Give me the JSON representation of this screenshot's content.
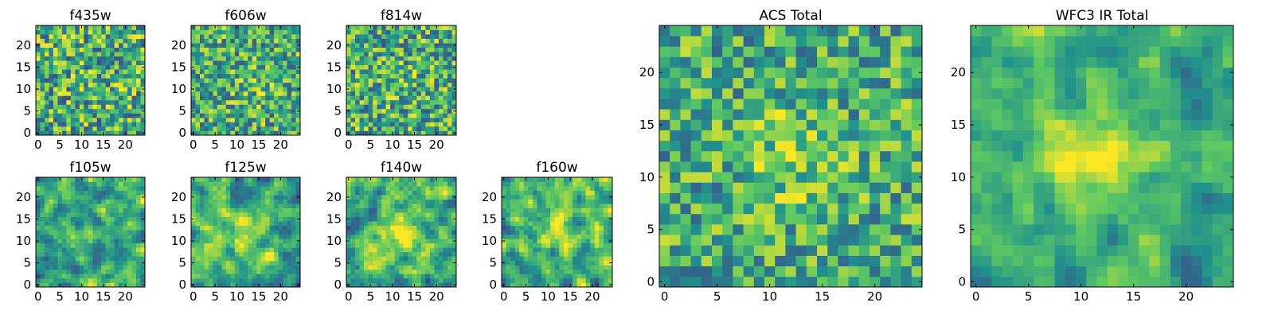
{
  "figure": {
    "description_panels": 9
  },
  "colormap": {
    "name": "viridis",
    "stops": [
      "#440154",
      "#3b528b",
      "#21918c",
      "#5ec962",
      "#fde725"
    ]
  },
  "chart_data": [
    {
      "id": "f435w",
      "type": "heatmap",
      "title": "f435w",
      "size": 25,
      "xlim": [
        0,
        24
      ],
      "ylim": [
        0,
        24
      ],
      "xticks": [
        0,
        5,
        10,
        15,
        20
      ],
      "yticks": [
        0,
        5,
        10,
        15,
        20
      ],
      "peak": [
        12,
        12
      ],
      "peak_strength": 0.02,
      "noise": 0.38,
      "seed": 11,
      "smooth": 0
    },
    {
      "id": "f606w",
      "type": "heatmap",
      "title": "f606w",
      "size": 25,
      "xlim": [
        0,
        24
      ],
      "ylim": [
        0,
        24
      ],
      "xticks": [
        0,
        5,
        10,
        15,
        20
      ],
      "yticks": [
        0,
        5,
        10,
        15,
        20
      ],
      "peak": [
        14,
        11
      ],
      "peak_strength": 0.12,
      "noise": 0.34,
      "seed": 23,
      "smooth": 0
    },
    {
      "id": "f814w",
      "type": "heatmap",
      "title": "f814w",
      "size": 25,
      "xlim": [
        0,
        24
      ],
      "ylim": [
        0,
        24
      ],
      "xticks": [
        0,
        5,
        10,
        15,
        20
      ],
      "yticks": [
        0,
        5,
        10,
        15,
        20
      ],
      "peak": [
        12,
        12
      ],
      "peak_strength": 0.05,
      "noise": 0.36,
      "seed": 37,
      "smooth": 0
    },
    {
      "id": "f105w",
      "type": "heatmap",
      "title": "f105w",
      "size": 25,
      "xlim": [
        0,
        24
      ],
      "ylim": [
        0,
        24
      ],
      "xticks": [
        0,
        5,
        10,
        15,
        20
      ],
      "yticks": [
        0,
        5,
        10,
        15,
        20
      ],
      "peak": [
        12,
        12
      ],
      "peak_strength": 0.1,
      "noise": 0.42,
      "seed": 41,
      "smooth": 1
    },
    {
      "id": "f125w",
      "type": "heatmap",
      "title": "f125w",
      "size": 25,
      "xlim": [
        0,
        24
      ],
      "ylim": [
        0,
        24
      ],
      "xticks": [
        0,
        5,
        10,
        15,
        20
      ],
      "yticks": [
        0,
        5,
        10,
        15,
        20
      ],
      "peak": [
        12,
        11
      ],
      "peak_strength": 0.22,
      "noise": 0.4,
      "seed": 53,
      "smooth": 1
    },
    {
      "id": "f140w",
      "type": "heatmap",
      "title": "f140w",
      "size": 25,
      "xlim": [
        0,
        24
      ],
      "ylim": [
        0,
        24
      ],
      "xticks": [
        0,
        5,
        10,
        15,
        20
      ],
      "yticks": [
        0,
        5,
        10,
        15,
        20
      ],
      "peak": [
        11,
        12
      ],
      "peak_strength": 0.35,
      "noise": 0.4,
      "seed": 67,
      "smooth": 1
    },
    {
      "id": "f160w",
      "type": "heatmap",
      "title": "f160w",
      "size": 25,
      "xlim": [
        0,
        24
      ],
      "ylim": [
        0,
        24
      ],
      "xticks": [
        0,
        5,
        10,
        15,
        20
      ],
      "yticks": [
        0,
        5,
        10,
        15,
        20
      ],
      "peak": [
        12,
        13
      ],
      "peak_strength": 0.3,
      "noise": 0.44,
      "seed": 79,
      "smooth": 1
    },
    {
      "id": "acs-total",
      "type": "heatmap",
      "title": "ACS Total",
      "size": 25,
      "xlim": [
        0,
        24
      ],
      "ylim": [
        0,
        24
      ],
      "xticks": [
        0,
        5,
        10,
        15,
        20
      ],
      "yticks": [
        0,
        5,
        10,
        15,
        20
      ],
      "peak": [
        12,
        12
      ],
      "peak_strength": 0.18,
      "noise": 0.3,
      "seed": 97,
      "smooth": 0
    },
    {
      "id": "wfc3-ir-total",
      "type": "heatmap",
      "title": "WFC3 IR Total",
      "size": 25,
      "xlim": [
        0,
        24
      ],
      "ylim": [
        0,
        24
      ],
      "xticks": [
        0,
        5,
        10,
        15,
        20
      ],
      "yticks": [
        0,
        5,
        10,
        15,
        20
      ],
      "peak": [
        12,
        12
      ],
      "peak_strength": 0.42,
      "noise": 0.3,
      "seed": 131,
      "smooth": 1
    }
  ]
}
